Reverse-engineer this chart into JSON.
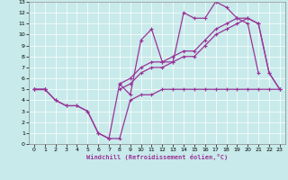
{
  "background_color": "#c8eaea",
  "grid_color": "#ffffff",
  "line_color": "#993399",
  "marker_color": "#993399",
  "xlabel": "Windchill (Refroidissement éolien,°C)",
  "xlim": [
    -0.5,
    23.5
  ],
  "ylim": [
    0,
    13
  ],
  "xticks": [
    0,
    1,
    2,
    3,
    4,
    5,
    6,
    7,
    8,
    9,
    10,
    11,
    12,
    13,
    14,
    15,
    16,
    17,
    18,
    19,
    20,
    21,
    22,
    23
  ],
  "yticks": [
    0,
    1,
    2,
    3,
    4,
    5,
    6,
    7,
    8,
    9,
    10,
    11,
    12,
    13
  ],
  "line1_x": [
    0,
    1,
    2,
    3,
    4,
    5,
    6,
    7,
    8,
    9,
    10,
    11,
    12,
    13,
    14,
    15,
    16,
    17,
    18,
    19,
    20,
    21,
    22,
    23
  ],
  "line1_y": [
    5,
    5,
    4,
    3.5,
    3.5,
    3,
    1,
    0.5,
    0.5,
    4,
    4.5,
    4.5,
    5,
    5,
    5,
    5,
    5,
    5,
    5,
    5,
    5,
    5,
    5,
    5
  ],
  "line2_x": [
    0,
    1,
    2,
    3,
    4,
    5,
    6,
    7,
    8,
    9,
    10,
    11,
    12,
    13,
    14,
    15,
    16,
    17,
    18,
    19,
    20,
    21,
    22,
    23
  ],
  "line2_y": [
    5,
    5,
    4,
    3.5,
    3.5,
    3,
    1,
    0.5,
    5.5,
    4.5,
    9.5,
    10.5,
    7.5,
    7.5,
    12,
    11.5,
    11.5,
    13,
    12.5,
    11.5,
    11,
    6.5,
    null,
    null
  ],
  "line3_x": [
    0,
    1,
    2,
    3,
    4,
    5,
    6,
    7,
    8,
    9,
    10,
    11,
    12,
    13,
    14,
    15,
    16,
    17,
    18,
    19,
    20,
    21,
    22,
    23
  ],
  "line3_y": [
    5,
    5,
    null,
    null,
    null,
    null,
    null,
    null,
    5.5,
    6,
    7,
    7.5,
    7.5,
    8,
    8.5,
    8.5,
    9.5,
    10.5,
    11,
    11.5,
    11.5,
    11,
    6.5,
    5
  ],
  "line4_x": [
    0,
    1,
    2,
    3,
    4,
    5,
    6,
    7,
    8,
    9,
    10,
    11,
    12,
    13,
    14,
    15,
    16,
    17,
    18,
    19,
    20,
    21,
    22,
    23
  ],
  "line4_y": [
    5,
    5,
    null,
    null,
    null,
    null,
    null,
    null,
    5,
    5.5,
    6.5,
    7,
    7,
    7.5,
    8,
    8,
    9,
    10,
    10.5,
    11,
    11.5,
    11,
    6.5,
    5
  ]
}
